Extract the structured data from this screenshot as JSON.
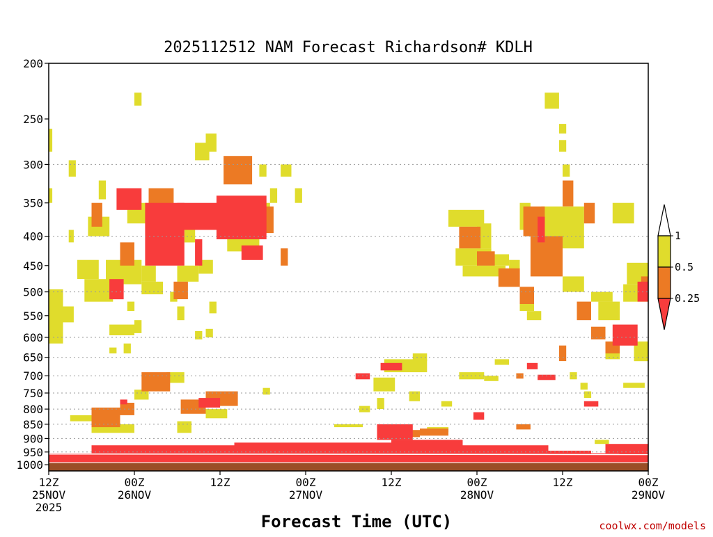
{
  "chart_data": {
    "type": "heatmap",
    "title": "2025112512 NAM Forecast Richardson# KDLH",
    "xlabel": "Forecast Time (UTC)",
    "ylabel": "",
    "credit": "coolwx.com/models",
    "y_axis": {
      "ticks": [
        200,
        250,
        300,
        350,
        400,
        450,
        500,
        550,
        600,
        650,
        700,
        750,
        800,
        850,
        900,
        950,
        1000
      ],
      "tick_labels": [
        "200",
        "250",
        "300",
        "350",
        "400",
        "450",
        "500",
        "550",
        "600",
        "650",
        "700",
        "750",
        "800",
        "850",
        "900",
        "950",
        "1000"
      ],
      "range": [
        200,
        1025
      ],
      "scale": "log-pressure",
      "gridlines": [
        300,
        400,
        500,
        600,
        650,
        700,
        750,
        800,
        850,
        900,
        950
      ]
    },
    "x_axis": {
      "range_hours": [
        0,
        84
      ],
      "ticks": [
        {
          "hour": 0,
          "line1": "12Z",
          "line2": "25NOV",
          "line3": "2025"
        },
        {
          "hour": 12,
          "line1": "00Z",
          "line2": "26NOV",
          "line3": ""
        },
        {
          "hour": 24,
          "line1": "12Z",
          "line2": "",
          "line3": ""
        },
        {
          "hour": 36,
          "line1": "00Z",
          "line2": "27NOV",
          "line3": ""
        },
        {
          "hour": 48,
          "line1": "12Z",
          "line2": "",
          "line3": ""
        },
        {
          "hour": 60,
          "line1": "00Z",
          "line2": "28NOV",
          "line3": ""
        },
        {
          "hour": 72,
          "line1": "12Z",
          "line2": "",
          "line3": ""
        },
        {
          "hour": 84,
          "line1": "00Z",
          "line2": "29NOV",
          "line3": ""
        }
      ]
    },
    "legend": {
      "placement": "right",
      "bins": [
        {
          "label": "0.25",
          "color": "#f83c3c",
          "range": [
            null,
            0.25
          ]
        },
        {
          "label": "0.5",
          "color": "#ec7a24",
          "range": [
            0.25,
            0.5
          ]
        },
        {
          "label": "1",
          "color": "#e0dc2c",
          "range": [
            0.5,
            1
          ]
        },
        {
          "label": "",
          "color": "#ffffff",
          "range": [
            1,
            null
          ]
        }
      ],
      "labels": [
        "1",
        "0.5",
        "0.25"
      ]
    },
    "ground": {
      "color": "#9a4e26",
      "pressure_top": 993
    },
    "regions": [
      {
        "c": 0,
        "t0": 0,
        "t1": 84,
        "p0": 955,
        "p1": 990
      },
      {
        "c": 0,
        "t0": 6,
        "t1": 26,
        "p0": 925,
        "p1": 955
      },
      {
        "c": 0,
        "t0": 26,
        "t1": 48,
        "p0": 915,
        "p1": 955
      },
      {
        "c": 0,
        "t0": 48,
        "t1": 58,
        "p0": 905,
        "p1": 955
      },
      {
        "c": 0,
        "t0": 58,
        "t1": 70,
        "p0": 925,
        "p1": 955
      },
      {
        "c": 0,
        "t0": 70,
        "t1": 76,
        "p0": 945,
        "p1": 958
      },
      {
        "c": 0,
        "t0": 78,
        "t1": 84,
        "p0": 920,
        "p1": 955
      },
      {
        "c": 0,
        "t0": 46,
        "t1": 51,
        "p0": 850,
        "p1": 905
      },
      {
        "c": 0,
        "t0": 59.5,
        "t1": 61,
        "p0": 810,
        "p1": 835
      },
      {
        "c": 0,
        "t0": 43,
        "t1": 45,
        "p0": 693,
        "p1": 710
      },
      {
        "c": 0,
        "t0": 46.5,
        "t1": 49.5,
        "p0": 665,
        "p1": 685
      },
      {
        "c": 0,
        "t0": 67,
        "t1": 68.5,
        "p0": 665,
        "p1": 682
      },
      {
        "c": 0,
        "t0": 68.5,
        "t1": 71,
        "p0": 697,
        "p1": 712
      },
      {
        "c": 0,
        "t0": 75,
        "t1": 77,
        "p0": 775,
        "p1": 792
      },
      {
        "c": 0,
        "t0": 10,
        "t1": 11,
        "p0": 770,
        "p1": 785
      },
      {
        "c": 0,
        "t0": 21,
        "t1": 24,
        "p0": 765,
        "p1": 795
      },
      {
        "c": 0,
        "t0": 8.5,
        "t1": 10.5,
        "p0": 475,
        "p1": 515
      },
      {
        "c": 0,
        "t0": 9.5,
        "t1": 13,
        "p0": 330,
        "p1": 360
      },
      {
        "c": 0,
        "t0": 13.5,
        "t1": 19,
        "p0": 350,
        "p1": 450
      },
      {
        "c": 0,
        "t0": 18,
        "t1": 24,
        "p0": 350,
        "p1": 390
      },
      {
        "c": 0,
        "t0": 20.5,
        "t1": 21.5,
        "p0": 405,
        "p1": 450
      },
      {
        "c": 0,
        "t0": 23.5,
        "t1": 30.5,
        "p0": 340,
        "p1": 405
      },
      {
        "c": 0,
        "t0": 27,
        "t1": 30,
        "p0": 415,
        "p1": 440
      },
      {
        "c": 0,
        "t0": 68.5,
        "t1": 69.5,
        "p0": 370,
        "p1": 410
      },
      {
        "c": 0,
        "t0": 79,
        "t1": 82.5,
        "p0": 570,
        "p1": 620
      },
      {
        "c": 0,
        "t0": 82.5,
        "t1": 84,
        "p0": 480,
        "p1": 520
      },
      {
        "c": 1,
        "t0": 6,
        "t1": 10,
        "p0": 795,
        "p1": 860
      },
      {
        "c": 1,
        "t0": 10,
        "t1": 12,
        "p0": 780,
        "p1": 820
      },
      {
        "c": 1,
        "t0": 13,
        "t1": 17,
        "p0": 690,
        "p1": 745
      },
      {
        "c": 1,
        "t0": 18.5,
        "t1": 22,
        "p0": 770,
        "p1": 815
      },
      {
        "c": 1,
        "t0": 22,
        "t1": 26.5,
        "p0": 745,
        "p1": 790
      },
      {
        "c": 1,
        "t0": 6,
        "t1": 7.5,
        "p0": 350,
        "p1": 385
      },
      {
        "c": 1,
        "t0": 10,
        "t1": 12,
        "p0": 410,
        "p1": 450
      },
      {
        "c": 1,
        "t0": 14,
        "t1": 17.5,
        "p0": 330,
        "p1": 380
      },
      {
        "c": 1,
        "t0": 17.5,
        "t1": 19.5,
        "p0": 480,
        "p1": 515
      },
      {
        "c": 1,
        "t0": 24.5,
        "t1": 28.5,
        "p0": 290,
        "p1": 325
      },
      {
        "c": 1,
        "t0": 30,
        "t1": 31.5,
        "p0": 355,
        "p1": 395
      },
      {
        "c": 1,
        "t0": 32.5,
        "t1": 33.5,
        "p0": 420,
        "p1": 450
      },
      {
        "c": 1,
        "t0": 57.5,
        "t1": 60.5,
        "p0": 385,
        "p1": 420
      },
      {
        "c": 1,
        "t0": 60,
        "t1": 62.5,
        "p0": 425,
        "p1": 450
      },
      {
        "c": 1,
        "t0": 63,
        "t1": 66,
        "p0": 455,
        "p1": 490
      },
      {
        "c": 1,
        "t0": 66,
        "t1": 68,
        "p0": 490,
        "p1": 525
      },
      {
        "c": 1,
        "t0": 66.5,
        "t1": 69.5,
        "p0": 355,
        "p1": 400
      },
      {
        "c": 1,
        "t0": 67.5,
        "t1": 72,
        "p0": 400,
        "p1": 470
      },
      {
        "c": 1,
        "t0": 72,
        "t1": 73.5,
        "p0": 320,
        "p1": 355
      },
      {
        "c": 1,
        "t0": 75,
        "t1": 76.5,
        "p0": 350,
        "p1": 380
      },
      {
        "c": 1,
        "t0": 74,
        "t1": 76,
        "p0": 520,
        "p1": 560
      },
      {
        "c": 1,
        "t0": 76,
        "t1": 78,
        "p0": 575,
        "p1": 605
      },
      {
        "c": 1,
        "t0": 78,
        "t1": 80,
        "p0": 610,
        "p1": 640
      },
      {
        "c": 1,
        "t0": 83,
        "t1": 84,
        "p0": 470,
        "p1": 500
      },
      {
        "c": 1,
        "t0": 71.5,
        "t1": 72.5,
        "p0": 620,
        "p1": 660
      },
      {
        "c": 1,
        "t0": 47.5,
        "t1": 52,
        "p0": 870,
        "p1": 895
      },
      {
        "c": 1,
        "t0": 52,
        "t1": 56,
        "p0": 865,
        "p1": 890
      },
      {
        "c": 1,
        "t0": 65.5,
        "t1": 67.5,
        "p0": 850,
        "p1": 868
      },
      {
        "c": 1,
        "t0": 65.5,
        "t1": 66.5,
        "p0": 693,
        "p1": 708
      },
      {
        "c": 2,
        "t0": 0,
        "t1": 0.5,
        "p0": 260,
        "p1": 285
      },
      {
        "c": 2,
        "t0": 0,
        "t1": 0.5,
        "p0": 330,
        "p1": 350
      },
      {
        "c": 2,
        "t0": 0,
        "t1": 2,
        "p0": 495,
        "p1": 615
      },
      {
        "c": 2,
        "t0": 2,
        "t1": 3.5,
        "p0": 530,
        "p1": 565
      },
      {
        "c": 2,
        "t0": 2.8,
        "t1": 3.8,
        "p0": 295,
        "p1": 315
      },
      {
        "c": 2,
        "t0": 2.8,
        "t1": 3.5,
        "p0": 390,
        "p1": 410
      },
      {
        "c": 2,
        "t0": 4,
        "t1": 7,
        "p0": 440,
        "p1": 475
      },
      {
        "c": 2,
        "t0": 5,
        "t1": 9,
        "p0": 475,
        "p1": 520
      },
      {
        "c": 2,
        "t0": 5.5,
        "t1": 8.5,
        "p0": 370,
        "p1": 400
      },
      {
        "c": 2,
        "t0": 7,
        "t1": 8,
        "p0": 320,
        "p1": 345
      },
      {
        "c": 2,
        "t0": 8,
        "t1": 13,
        "p0": 440,
        "p1": 485
      },
      {
        "c": 2,
        "t0": 8.5,
        "t1": 12,
        "p0": 570,
        "p1": 595
      },
      {
        "c": 2,
        "t0": 8.5,
        "t1": 9.5,
        "p0": 625,
        "p1": 640
      },
      {
        "c": 2,
        "t0": 10.5,
        "t1": 11.5,
        "p0": 615,
        "p1": 640
      },
      {
        "c": 2,
        "t0": 11,
        "t1": 12,
        "p0": 520,
        "p1": 540
      },
      {
        "c": 2,
        "t0": 12,
        "t1": 13,
        "p0": 225,
        "p1": 237
      },
      {
        "c": 2,
        "t0": 11,
        "t1": 14,
        "p0": 350,
        "p1": 380
      },
      {
        "c": 2,
        "t0": 12,
        "t1": 13,
        "p0": 560,
        "p1": 590
      },
      {
        "c": 2,
        "t0": 13,
        "t1": 16,
        "p0": 480,
        "p1": 505
      },
      {
        "c": 2,
        "t0": 13,
        "t1": 15,
        "p0": 450,
        "p1": 480
      },
      {
        "c": 2,
        "t0": 17,
        "t1": 18,
        "p0": 500,
        "p1": 520
      },
      {
        "c": 2,
        "t0": 18,
        "t1": 19,
        "p0": 530,
        "p1": 560
      },
      {
        "c": 2,
        "t0": 18,
        "t1": 21,
        "p0": 450,
        "p1": 480
      },
      {
        "c": 2,
        "t0": 21,
        "t1": 23,
        "p0": 440,
        "p1": 465
      },
      {
        "c": 2,
        "t0": 19,
        "t1": 20.5,
        "p0": 385,
        "p1": 410
      },
      {
        "c": 2,
        "t0": 20.5,
        "t1": 22.5,
        "p0": 275,
        "p1": 295
      },
      {
        "c": 2,
        "t0": 22,
        "t1": 23.5,
        "p0": 265,
        "p1": 285
      },
      {
        "c": 2,
        "t0": 20.5,
        "t1": 21.5,
        "p0": 585,
        "p1": 605
      },
      {
        "c": 2,
        "t0": 22,
        "t1": 23,
        "p0": 580,
        "p1": 600
      },
      {
        "c": 2,
        "t0": 22.5,
        "t1": 23.5,
        "p0": 520,
        "p1": 545
      },
      {
        "c": 2,
        "t0": 25,
        "t1": 29.5,
        "p0": 395,
        "p1": 425
      },
      {
        "c": 2,
        "t0": 29,
        "t1": 31,
        "p0": 350,
        "p1": 380
      },
      {
        "c": 2,
        "t0": 29.5,
        "t1": 30.5,
        "p0": 300,
        "p1": 315
      },
      {
        "c": 2,
        "t0": 31,
        "t1": 32,
        "p0": 330,
        "p1": 350
      },
      {
        "c": 2,
        "t0": 32.5,
        "t1": 34,
        "p0": 300,
        "p1": 315
      },
      {
        "c": 2,
        "t0": 34.5,
        "t1": 35.5,
        "p0": 330,
        "p1": 350
      },
      {
        "c": 2,
        "t0": 6,
        "t1": 12,
        "p0": 850,
        "p1": 880
      },
      {
        "c": 2,
        "t0": 3,
        "t1": 6,
        "p0": 820,
        "p1": 840
      },
      {
        "c": 2,
        "t0": 12,
        "t1": 14,
        "p0": 740,
        "p1": 770
      },
      {
        "c": 2,
        "t0": 16.5,
        "t1": 19,
        "p0": 690,
        "p1": 720
      },
      {
        "c": 2,
        "t0": 18,
        "t1": 20,
        "p0": 840,
        "p1": 880
      },
      {
        "c": 2,
        "t0": 22,
        "t1": 25,
        "p0": 800,
        "p1": 830
      },
      {
        "c": 2,
        "t0": 30,
        "t1": 31,
        "p0": 735,
        "p1": 755
      },
      {
        "c": 2,
        "t0": 45.5,
        "t1": 48.5,
        "p0": 705,
        "p1": 745
      },
      {
        "c": 2,
        "t0": 46,
        "t1": 47,
        "p0": 765,
        "p1": 800
      },
      {
        "c": 2,
        "t0": 47,
        "t1": 53,
        "p0": 655,
        "p1": 690
      },
      {
        "c": 2,
        "t0": 50.5,
        "t1": 52,
        "p0": 745,
        "p1": 775
      },
      {
        "c": 2,
        "t0": 51,
        "t1": 53,
        "p0": 640,
        "p1": 660
      },
      {
        "c": 2,
        "t0": 56,
        "t1": 61,
        "p0": 360,
        "p1": 385
      },
      {
        "c": 2,
        "t0": 57,
        "t1": 62,
        "p0": 420,
        "p1": 450
      },
      {
        "c": 2,
        "t0": 58,
        "t1": 64,
        "p0": 450,
        "p1": 470
      },
      {
        "c": 2,
        "t0": 60,
        "t1": 62,
        "p0": 380,
        "p1": 420
      },
      {
        "c": 2,
        "t0": 62,
        "t1": 64.5,
        "p0": 430,
        "p1": 450
      },
      {
        "c": 2,
        "t0": 64.5,
        "t1": 66,
        "p0": 440,
        "p1": 470
      },
      {
        "c": 2,
        "t0": 66,
        "t1": 68,
        "p0": 520,
        "p1": 540
      },
      {
        "c": 2,
        "t0": 67,
        "t1": 69,
        "p0": 540,
        "p1": 560
      },
      {
        "c": 2,
        "t0": 66,
        "t1": 67.5,
        "p0": 350,
        "p1": 390
      },
      {
        "c": 2,
        "t0": 69,
        "t1": 75,
        "p0": 355,
        "p1": 420
      },
      {
        "c": 2,
        "t0": 69.5,
        "t1": 71.5,
        "p0": 225,
        "p1": 240
      },
      {
        "c": 2,
        "t0": 71.5,
        "t1": 72.5,
        "p0": 255,
        "p1": 265
      },
      {
        "c": 2,
        "t0": 71.5,
        "t1": 72.5,
        "p0": 272,
        "p1": 285
      },
      {
        "c": 2,
        "t0": 72,
        "t1": 73,
        "p0": 300,
        "p1": 315
      },
      {
        "c": 2,
        "t0": 72,
        "t1": 75,
        "p0": 470,
        "p1": 500
      },
      {
        "c": 2,
        "t0": 76,
        "t1": 79,
        "p0": 500,
        "p1": 520
      },
      {
        "c": 2,
        "t0": 77,
        "t1": 80,
        "p0": 520,
        "p1": 560
      },
      {
        "c": 2,
        "t0": 79,
        "t1": 82,
        "p0": 350,
        "p1": 380
      },
      {
        "c": 2,
        "t0": 81,
        "t1": 84,
        "p0": 445,
        "p1": 485
      },
      {
        "c": 2,
        "t0": 80.5,
        "t1": 84,
        "p0": 485,
        "p1": 520
      },
      {
        "c": 2,
        "t0": 78,
        "t1": 80,
        "p0": 625,
        "p1": 655
      },
      {
        "c": 2,
        "t0": 82,
        "t1": 84,
        "p0": 610,
        "p1": 660
      },
      {
        "c": 2,
        "t0": 75,
        "t1": 76,
        "p0": 745,
        "p1": 765
      },
      {
        "c": 2,
        "t0": 74.5,
        "t1": 75.5,
        "p0": 720,
        "p1": 740
      },
      {
        "c": 2,
        "t0": 73,
        "t1": 74,
        "p0": 690,
        "p1": 710
      },
      {
        "c": 2,
        "t0": 80.5,
        "t1": 83.5,
        "p0": 720,
        "p1": 735
      },
      {
        "c": 2,
        "t0": 76.5,
        "t1": 78.5,
        "p0": 905,
        "p1": 920
      },
      {
        "c": 2,
        "t0": 53,
        "t1": 56,
        "p0": 860,
        "p1": 878
      },
      {
        "c": 2,
        "t0": 40,
        "t1": 44,
        "p0": 850,
        "p1": 860
      },
      {
        "c": 2,
        "t0": 62.5,
        "t1": 64.5,
        "p0": 655,
        "p1": 670
      },
      {
        "c": 2,
        "t0": 57.5,
        "t1": 61,
        "p0": 690,
        "p1": 710
      },
      {
        "c": 2,
        "t0": 61,
        "t1": 63,
        "p0": 700,
        "p1": 715
      },
      {
        "c": 2,
        "t0": 43.5,
        "t1": 45,
        "p0": 790,
        "p1": 810
      },
      {
        "c": 2,
        "t0": 55,
        "t1": 56.5,
        "p0": 775,
        "p1": 792
      }
    ]
  }
}
